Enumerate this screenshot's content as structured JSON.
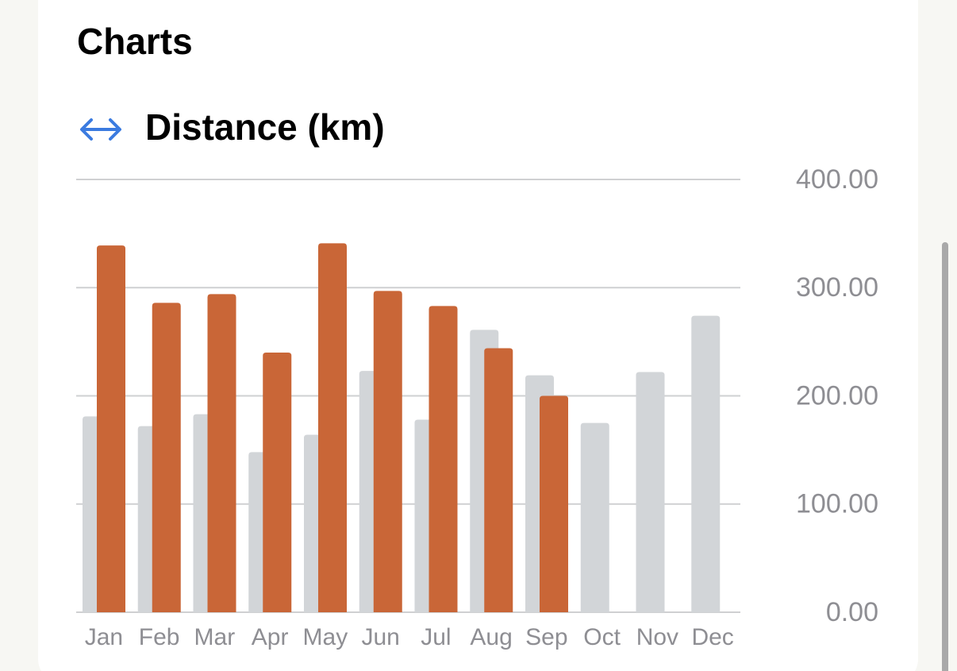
{
  "header": {
    "title": "Charts"
  },
  "chart_data": {
    "type": "bar",
    "title": "Distance (km)",
    "categories": [
      "Jan",
      "Feb",
      "Mar",
      "Apr",
      "May",
      "Jun",
      "Jul",
      "Aug",
      "Sep",
      "Oct",
      "Nov",
      "Dec"
    ],
    "series": [
      {
        "color": "#d2d5d8",
        "values": [
          181,
          172,
          183,
          148,
          164,
          223,
          178,
          261,
          219,
          175,
          222,
          274
        ]
      },
      {
        "color": "#c96637",
        "values": [
          339,
          286,
          294,
          240,
          341,
          297,
          283,
          244,
          200,
          null,
          null,
          null
        ]
      }
    ],
    "ylim": [
      0,
      400
    ],
    "yticks": [
      {
        "value": 0,
        "label": "0.00"
      },
      {
        "value": 100,
        "label": "100.00"
      },
      {
        "value": 200,
        "label": "200.00"
      },
      {
        "value": 300,
        "label": "300.00"
      },
      {
        "value": 400,
        "label": "400.00"
      }
    ],
    "grid": true
  }
}
